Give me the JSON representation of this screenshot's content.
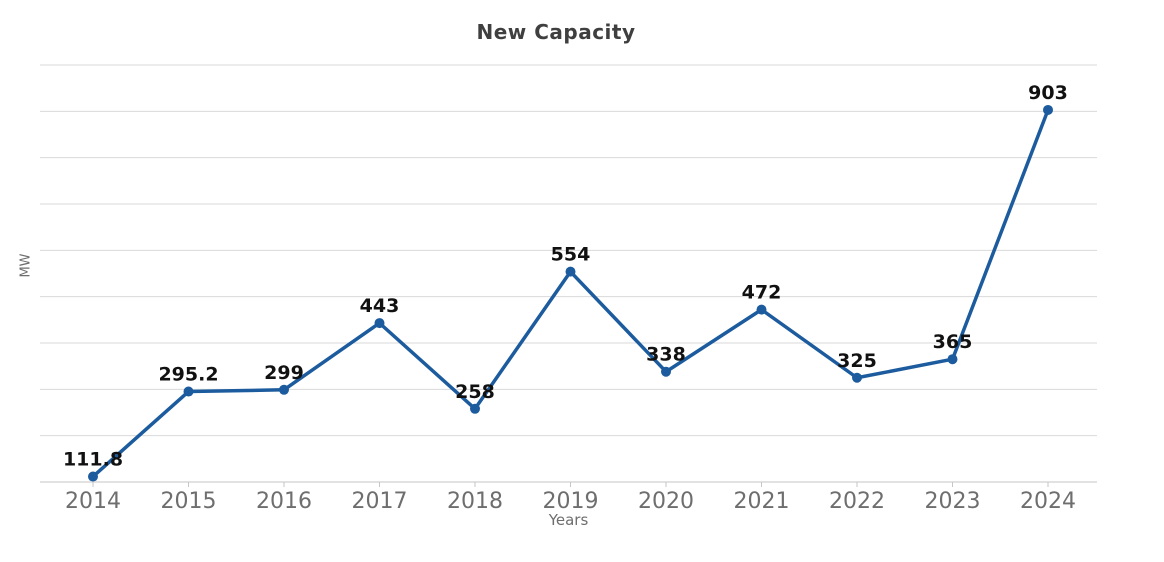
{
  "chart_data": {
    "type": "line",
    "title": "New Capacity",
    "xlabel": "Years",
    "ylabel": "MW",
    "categories": [
      "2014",
      "2015",
      "2016",
      "2017",
      "2018",
      "2019",
      "2020",
      "2021",
      "2022",
      "2023",
      "2024"
    ],
    "series": [
      {
        "name": "New Capacity",
        "values": [
          111.8,
          295.2,
          299,
          443,
          258,
          554,
          338,
          472,
          325,
          365,
          903
        ]
      }
    ],
    "data_labels": [
      "111.8",
      "295.2",
      "299",
      "443",
      "258",
      "554",
      "338",
      "472",
      "325",
      "365",
      "903"
    ],
    "ylim": [
      100,
      1000
    ],
    "grid": true,
    "grid_step": 100,
    "y_tick_labels_shown": false,
    "legend": "none",
    "colors": {
      "line": "#1c5c9e",
      "marker": "#1c5c9e",
      "grid": "#d9d9d9",
      "axis": "#c6c6c6",
      "title": "#3f3f3f",
      "tick_label": "#6e6e6e",
      "axis_title": "#6e6e6e",
      "data_label": "#111111",
      "background": "#ffffff"
    }
  }
}
